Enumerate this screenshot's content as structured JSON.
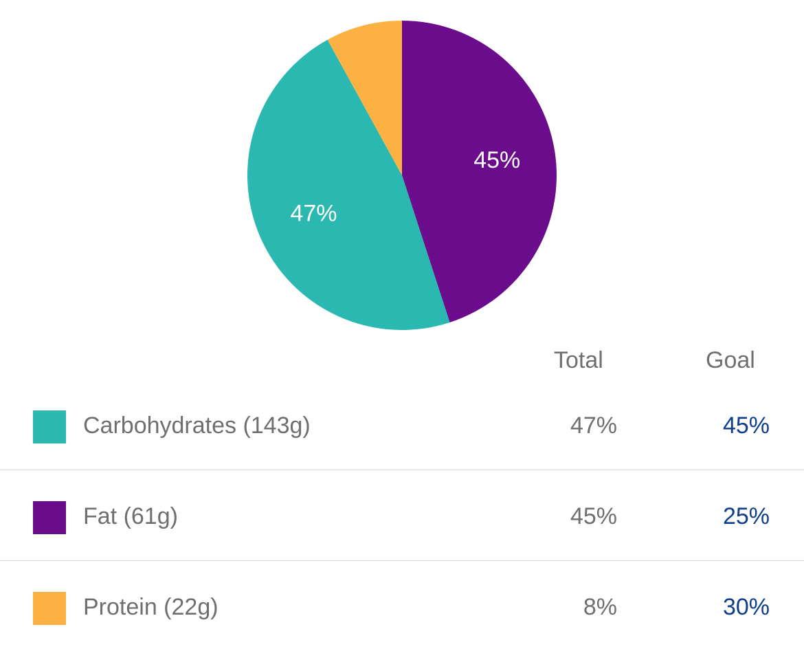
{
  "chart_data": {
    "type": "pie",
    "slices": [
      {
        "name": "Fat",
        "value": 45,
        "label": "45%",
        "color": "#6a0c8c"
      },
      {
        "name": "Carbohydrates",
        "value": 47,
        "label": "47%",
        "color": "#2bb8b0"
      },
      {
        "name": "Protein",
        "value": 8,
        "label": "",
        "color": "#fdb142"
      }
    ],
    "legend_placement": "bottom"
  },
  "table": {
    "headers": {
      "total": "Total",
      "goal": "Goal"
    },
    "goal_color": "#0f3e8c",
    "rows": [
      {
        "label": "Carbohydrates (143g)",
        "total": "47%",
        "goal": "45%",
        "color": "#2bb8b0"
      },
      {
        "label": "Fat (61g)",
        "total": "45%",
        "goal": "25%",
        "color": "#6a0c8c"
      },
      {
        "label": "Protein (22g)",
        "total": "8%",
        "goal": "30%",
        "color": "#fdb142"
      }
    ]
  }
}
